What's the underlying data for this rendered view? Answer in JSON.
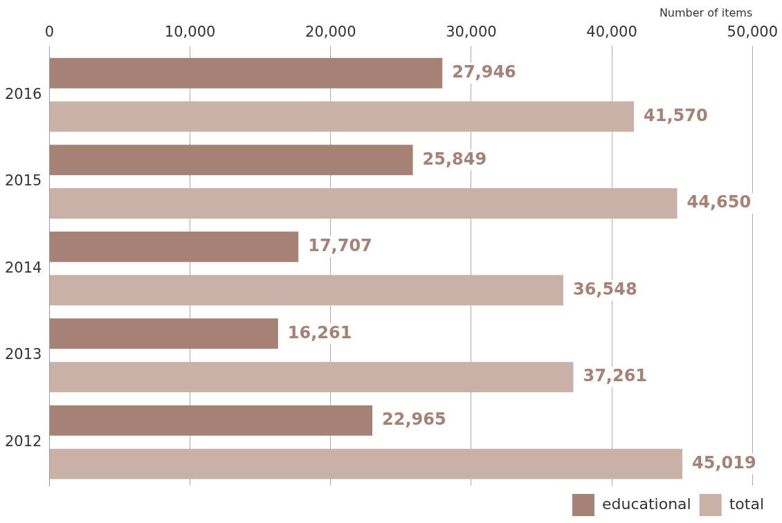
{
  "chart_data": {
    "type": "bar",
    "orientation": "horizontal",
    "xlabel": "Number of items",
    "categories": [
      "2016",
      "2015",
      "2014",
      "2013",
      "2012"
    ],
    "series": [
      {
        "name": "educational",
        "color": "#a58275",
        "values": [
          27946,
          25849,
          17707,
          16261,
          22965
        ],
        "value_labels": [
          "27,946",
          "25,849",
          "17,707",
          "16,261",
          "22,965"
        ]
      },
      {
        "name": "total",
        "color": "#c9b1a8",
        "values": [
          41570,
          44650,
          36548,
          37261,
          45019
        ],
        "value_labels": [
          "41,570",
          "44,650",
          "36,548",
          "37,261",
          "45,019"
        ]
      }
    ],
    "xlim": [
      0,
      50000
    ],
    "xticks": [
      0,
      {
        "value": 10000,
        "label": "10,000"
      },
      {
        "value": 20000,
        "label": "20,000"
      },
      {
        "value": 30000,
        "label": "30,000"
      },
      {
        "value": 40000,
        "label": "40,000"
      },
      {
        "value": 50000,
        "label": "50,000"
      }
    ],
    "grid": "x",
    "legend": "bottom right"
  }
}
